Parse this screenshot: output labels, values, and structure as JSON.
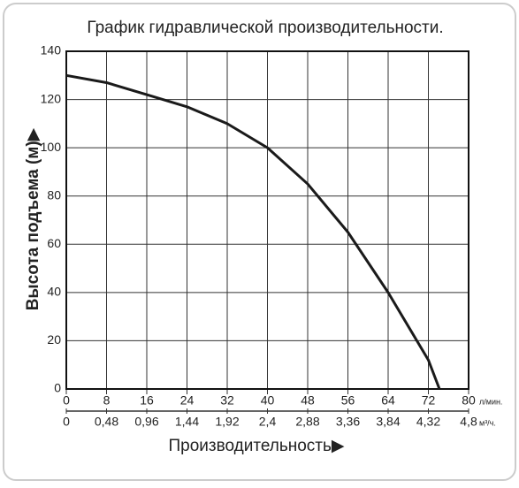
{
  "chart_data": {
    "type": "line",
    "title": "График гидравлической производительности.",
    "ylabel": "Высота подъема (м)▶",
    "xlabel": "Производительность▶",
    "xunit": "л/мин.",
    "x2unit": "м³/ч.",
    "x": [
      0,
      8,
      16,
      24,
      32,
      40,
      48,
      56,
      64,
      72,
      74.2
    ],
    "values": [
      130,
      127,
      122,
      117,
      110,
      100,
      85,
      65,
      40,
      12,
      0
    ],
    "color": "#1a1a1a",
    "xlim": [
      0,
      80
    ],
    "xticks": [
      0,
      8,
      16,
      24,
      32,
      40,
      48,
      56,
      64,
      72,
      80
    ],
    "x2lim": [
      0,
      4.8
    ],
    "x2ticks": [
      0,
      {
        "value": 0.48,
        "label": "0,48"
      },
      {
        "value": 0.96,
        "label": "0,96"
      },
      {
        "value": 1.44,
        "label": "1,44"
      },
      {
        "value": 1.92,
        "label": "1,92"
      },
      {
        "value": 2.4,
        "label": "2,4"
      },
      {
        "value": 2.88,
        "label": "2,88"
      },
      {
        "value": 3.36,
        "label": "3,36"
      },
      {
        "value": 3.84,
        "label": "3,84"
      },
      {
        "value": 4.32,
        "label": "4,32"
      },
      {
        "value": 4.8,
        "label": "4,8"
      }
    ],
    "ylim": [
      0,
      140
    ],
    "yticks": [
      0,
      20,
      40,
      60,
      80,
      100,
      120,
      140
    ],
    "grid": true
  }
}
